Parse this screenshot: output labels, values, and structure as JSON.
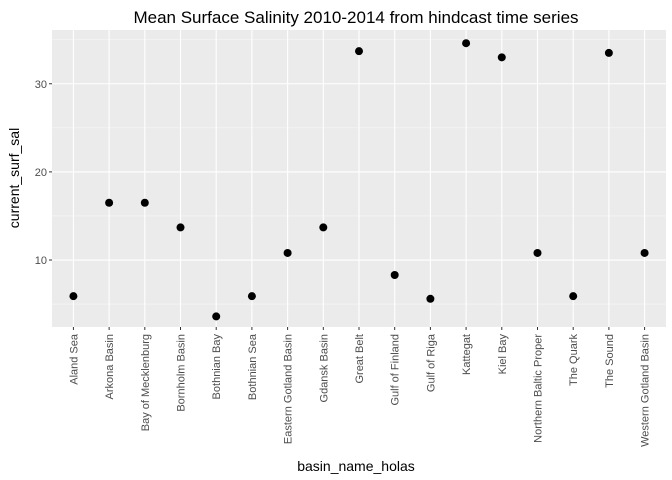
{
  "chart_data": {
    "type": "scatter",
    "title": "Mean Surface Salinity 2010-2014 from hindcast time series",
    "xlabel": "basin_name_holas",
    "ylabel": "current_surf_sal",
    "ylim": [
      2.4,
      36.1
    ],
    "yticks": [
      "10",
      "20",
      "30"
    ],
    "grid": true,
    "colors": {
      "panel": "#ebebeb",
      "grid": "#ffffff",
      "point": "#000000"
    },
    "categories": [
      "Aland Sea",
      "Arkona Basin",
      "Bay of Mecklenburg",
      "Bornholm Basin",
      "Bothnian Bay",
      "Bothnian Sea",
      "Eastern Gotland Basin",
      "Gdansk Basin",
      "Great Belt",
      "Gulf of Finland",
      "Gulf of Riga",
      "Kattegat",
      "Kiel Bay",
      "Northern Baltic Proper",
      "The Quark",
      "The Sound",
      "Western Gotland Basin"
    ],
    "values": [
      5.9,
      16.5,
      16.5,
      13.7,
      3.6,
      5.9,
      10.8,
      13.7,
      33.7,
      8.3,
      5.6,
      34.6,
      33.0,
      10.8,
      5.9,
      33.5,
      10.8
    ]
  }
}
